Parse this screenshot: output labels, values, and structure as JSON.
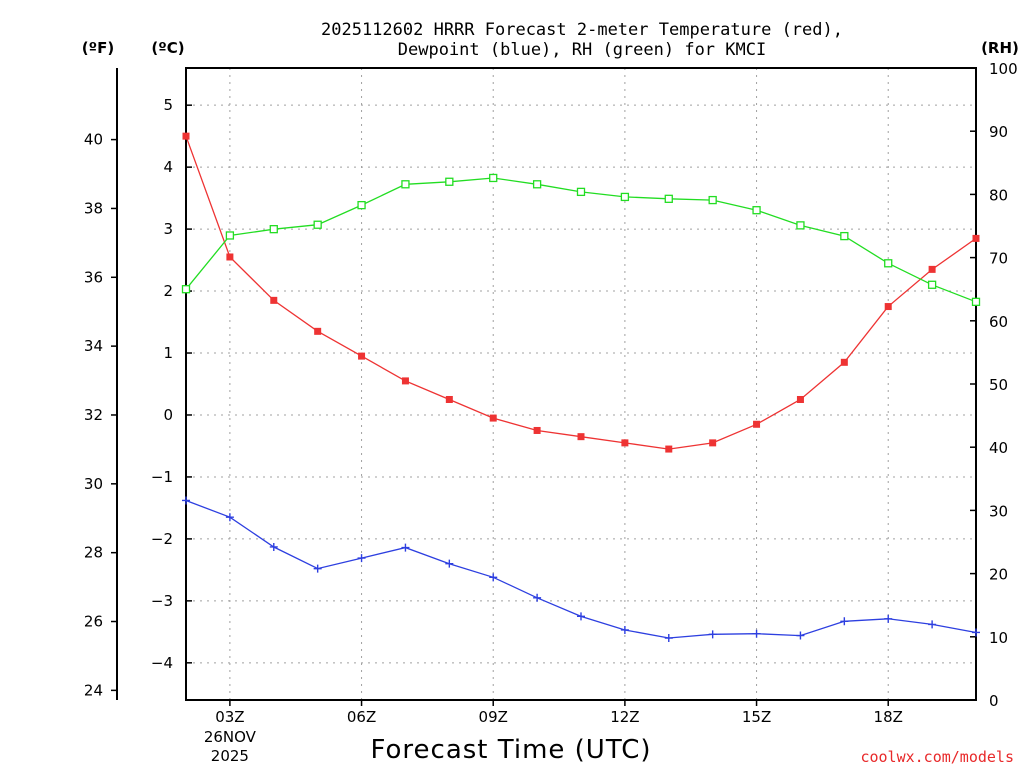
{
  "colors": {
    "temperature": "#ee3333",
    "dewpoint": "#2d3fe0",
    "rh": "#22dd22",
    "credit": "#e8292a"
  },
  "chart_data": {
    "type": "line",
    "title_line1": "2025112602 HRRR Forecast 2-meter Temperature (red),",
    "title_line2": "Dewpoint (blue), RH (green) for KMCI",
    "xlabel": "Forecast Time (UTC)",
    "credit": "coolwx.com/models",
    "units": {
      "fahrenheit": "(ºF)",
      "celsius": "(ºC)",
      "rh": "(RH)"
    },
    "x_hours": [
      2,
      3,
      4,
      5,
      6,
      7,
      8,
      9,
      10,
      11,
      12,
      13,
      14,
      15,
      16,
      17,
      18,
      19,
      20
    ],
    "xlim": [
      2,
      20
    ],
    "x_ticks": [
      {
        "hour": 3,
        "label": "03Z",
        "sub1": "26NOV",
        "sub2": "2025"
      },
      {
        "hour": 6,
        "label": "06Z"
      },
      {
        "hour": 9,
        "label": "09Z"
      },
      {
        "hour": 12,
        "label": "12Z"
      },
      {
        "hour": 15,
        "label": "15Z"
      },
      {
        "hour": 18,
        "label": "18Z"
      }
    ],
    "celsius_axis": {
      "ylim": [
        -4.6,
        5.6
      ],
      "ticks": [
        -4,
        -3,
        -2,
        -1,
        0,
        1,
        2,
        3,
        4,
        5
      ]
    },
    "fahrenheit_axis": {
      "ylim": [
        23.72,
        42.08
      ],
      "ticks": [
        24,
        26,
        28,
        30,
        32,
        34,
        36,
        38,
        40
      ]
    },
    "rh_axis": {
      "ylim": [
        0,
        100
      ],
      "ticks": [
        0,
        10,
        20,
        30,
        40,
        50,
        60,
        70,
        80,
        90,
        100
      ]
    },
    "series": [
      {
        "name": "Temperature",
        "axis": "celsius",
        "color": "#ee3333",
        "marker": "filled-square",
        "values": [
          4.5,
          2.55,
          1.85,
          1.35,
          0.95,
          0.55,
          0.25,
          -0.05,
          -0.25,
          -0.35,
          -0.45,
          -0.55,
          -0.45,
          -0.15,
          0.25,
          0.85,
          1.75,
          2.35,
          2.85
        ]
      },
      {
        "name": "Dewpoint",
        "axis": "celsius",
        "color": "#2d3fe0",
        "marker": "plus",
        "values": [
          -1.38,
          -1.65,
          -2.13,
          -2.48,
          -2.31,
          -2.14,
          -2.4,
          -2.62,
          -2.95,
          -3.25,
          -3.47,
          -3.6,
          -3.54,
          -3.53,
          -3.56,
          -3.33,
          -3.29,
          -3.38,
          -3.51
        ]
      },
      {
        "name": "RH",
        "axis": "rh",
        "color": "#22dd22",
        "marker": "open-square",
        "values": [
          65,
          73.5,
          74.5,
          75.2,
          78.3,
          81.6,
          82,
          82.6,
          81.6,
          80.4,
          79.6,
          79.3,
          79.1,
          77.5,
          75.1,
          73.4,
          69.1,
          65.7,
          63
        ]
      }
    ]
  }
}
